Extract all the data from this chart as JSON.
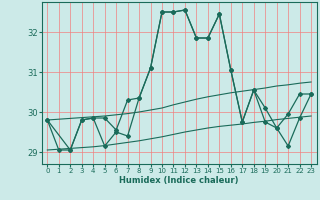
{
  "xlabel": "Humidex (Indice chaleur)",
  "background_color": "#cceae8",
  "grid_color": "#f08080",
  "line_color": "#1a6b5a",
  "xlim": [
    -0.5,
    23.5
  ],
  "ylim": [
    28.7,
    32.75
  ],
  "yticks": [
    29,
    30,
    31,
    32
  ],
  "xticks": [
    0,
    1,
    2,
    3,
    4,
    5,
    6,
    7,
    8,
    9,
    10,
    11,
    12,
    13,
    14,
    15,
    16,
    17,
    18,
    19,
    20,
    21,
    22,
    23
  ],
  "band_upper": [
    29.8,
    29.82,
    29.84,
    29.86,
    29.88,
    29.9,
    29.93,
    29.96,
    30.0,
    30.05,
    30.1,
    30.18,
    30.25,
    30.32,
    30.38,
    30.43,
    30.48,
    30.52,
    30.56,
    30.6,
    30.65,
    30.68,
    30.72,
    30.75
  ],
  "band_lower": [
    29.05,
    29.07,
    29.09,
    29.11,
    29.13,
    29.16,
    29.2,
    29.24,
    29.28,
    29.33,
    29.38,
    29.44,
    29.5,
    29.55,
    29.6,
    29.64,
    29.67,
    29.7,
    29.74,
    29.77,
    29.81,
    29.84,
    29.87,
    29.9
  ],
  "line_main_x": [
    0,
    1,
    2,
    3,
    4,
    5,
    6,
    7,
    8,
    9,
    10,
    11,
    12,
    13,
    14,
    15,
    16,
    17,
    18,
    19,
    20,
    21,
    22,
    23
  ],
  "line_main_y": [
    29.8,
    29.05,
    29.05,
    29.8,
    29.85,
    29.85,
    29.55,
    30.3,
    30.35,
    31.1,
    32.5,
    32.5,
    32.55,
    31.85,
    31.85,
    32.45,
    31.05,
    29.75,
    30.55,
    30.1,
    29.6,
    29.15,
    29.85,
    30.45
  ],
  "line_second_x": [
    0,
    2,
    3,
    4,
    5,
    6,
    7,
    8,
    9,
    10,
    11,
    12,
    13,
    14,
    15,
    16,
    17,
    18,
    19,
    20,
    21,
    22,
    23
  ],
  "line_second_y": [
    29.8,
    29.05,
    29.8,
    29.85,
    29.15,
    29.5,
    29.4,
    30.35,
    31.1,
    32.5,
    32.5,
    32.55,
    31.85,
    31.85,
    32.45,
    31.05,
    29.75,
    30.55,
    29.75,
    29.6,
    29.95,
    30.45,
    30.45
  ]
}
